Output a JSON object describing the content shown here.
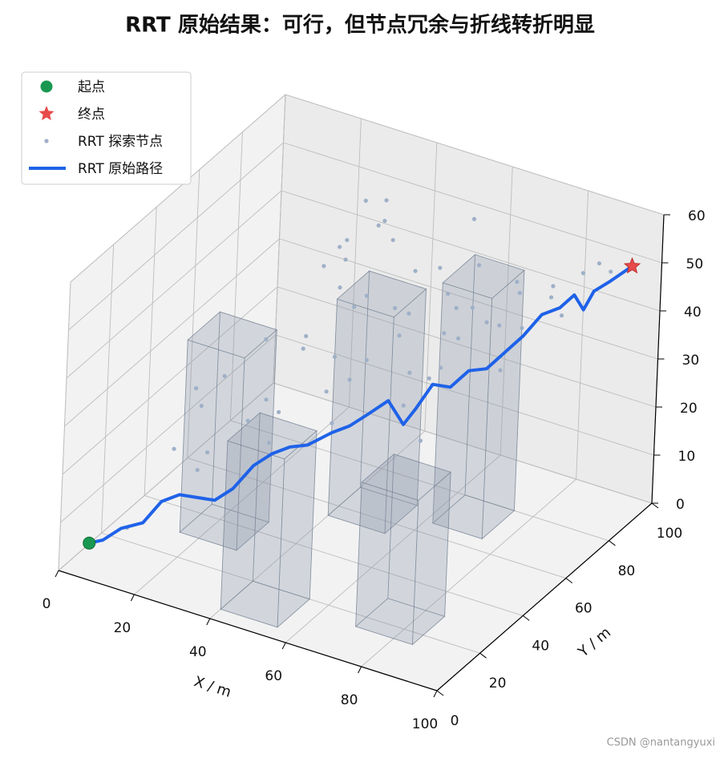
{
  "chart_data": {
    "type": "scatter3d",
    "title": "RRT 原始结果：可行，但节点冗余与折线转折明显",
    "xlabel": "X / m",
    "ylabel": "Y / m",
    "xlim": [
      0,
      100
    ],
    "ylim": [
      0,
      100
    ],
    "zlim": [
      0,
      60
    ],
    "xticks": [
      0,
      20,
      40,
      60,
      80,
      100
    ],
    "yticks": [
      0,
      20,
      40,
      60,
      80,
      100
    ],
    "zticks": [
      0,
      10,
      20,
      30,
      40,
      50,
      60
    ],
    "grid": true,
    "legend": "upper left",
    "series": [
      {
        "name": "起点",
        "color": "#1a9850",
        "marker": "circle",
        "x": [
          5
        ],
        "y": [
          5
        ],
        "z": [
          5
        ]
      },
      {
        "name": "终点",
        "color": "#e84a4a",
        "marker": "star",
        "x": [
          95
        ],
        "y": [
          95
        ],
        "z": [
          50
        ]
      },
      {
        "name": "RRT 探索节点",
        "color": "#9fb0c8",
        "marker": "dot",
        "x": [
          12,
          18,
          22,
          25,
          15,
          30,
          28,
          35,
          40,
          33,
          45,
          38,
          42,
          50,
          48,
          55,
          52,
          60,
          58,
          62,
          65,
          47,
          44,
          36,
          26,
          20,
          32,
          41,
          53,
          57,
          63,
          68,
          72,
          70,
          75,
          78,
          80,
          85,
          88,
          66,
          59,
          49,
          39,
          29,
          24,
          17,
          34,
          46,
          54,
          61,
          73,
          82,
          90,
          43,
          51,
          37,
          27,
          56,
          64,
          69
        ],
        "y": [
          10,
          20,
          25,
          30,
          35,
          40,
          45,
          50,
          55,
          38,
          60,
          62,
          48,
          52,
          66,
          58,
          70,
          64,
          74,
          72,
          68,
          42,
          56,
          66,
          55,
          28,
          70,
          75,
          80,
          60,
          78,
          82,
          76,
          86,
          80,
          88,
          85,
          90,
          92,
          50,
          54,
          46,
          58,
          60,
          44,
          38,
          78,
          72,
          64,
          84,
          82,
          86,
          94,
          68,
          88,
          82,
          72,
          90,
          62,
          74
        ],
        "z": [
          8,
          22,
          30,
          35,
          28,
          40,
          25,
          38,
          33,
          20,
          45,
          50,
          29,
          36,
          55,
          40,
          48,
          30,
          35,
          42,
          38,
          26,
          44,
          52,
          18,
          15,
          48,
          58,
          45,
          32,
          40,
          36,
          30,
          44,
          38,
          42,
          46,
          48,
          50,
          24,
          28,
          34,
          46,
          30,
          20,
          14,
          55,
          38,
          42,
          46,
          44,
          40,
          48,
          56,
          36,
          50,
          42,
          52,
          34,
          40
        ]
      },
      {
        "name": "RRT 原始路径",
        "color": "#1f62e8",
        "marker": "line",
        "x": [
          5,
          8,
          11,
          15,
          18,
          21,
          24,
          27,
          30,
          33,
          36,
          39,
          42,
          46,
          49,
          52,
          55,
          57,
          59,
          61,
          64,
          67,
          70,
          73,
          76,
          79,
          82,
          84,
          86,
          88,
          91,
          95
        ],
        "y": [
          5,
          6,
          9,
          12,
          15,
          18,
          21,
          24,
          27,
          31,
          34,
          37,
          40,
          44,
          47,
          50,
          54,
          58,
          60,
          64,
          67,
          70,
          73,
          76,
          79,
          82,
          85,
          88,
          89,
          90,
          92,
          95
        ],
        "z": [
          5,
          6,
          8,
          9,
          13,
          14,
          13,
          12,
          14,
          18,
          20,
          21,
          21,
          23,
          24,
          26,
          28,
          22,
          25,
          29,
          28,
          31,
          31,
          34,
          37,
          41,
          42,
          44,
          41,
          45,
          47,
          50
        ]
      }
    ],
    "obstacle_color": "#8a96ab",
    "obstacles": [
      {
        "x": [
          15,
          30
        ],
        "y": [
          30,
          45
        ],
        "z": [
          0,
          40
        ]
      },
      {
        "x": [
          40,
          55
        ],
        "y": [
          55,
          70
        ],
        "z": [
          0,
          45
        ]
      },
      {
        "x": [
          62,
          75
        ],
        "y": [
          65,
          80
        ],
        "z": [
          0,
          50
        ]
      },
      {
        "x": [
          40,
          55
        ],
        "y": [
          5,
          20
        ],
        "z": [
          0,
          35
        ]
      },
      {
        "x": [
          70,
          85
        ],
        "y": [
          15,
          30
        ],
        "z": [
          0,
          30
        ]
      }
    ],
    "watermark": "CSDN @nantangyuxi"
  }
}
